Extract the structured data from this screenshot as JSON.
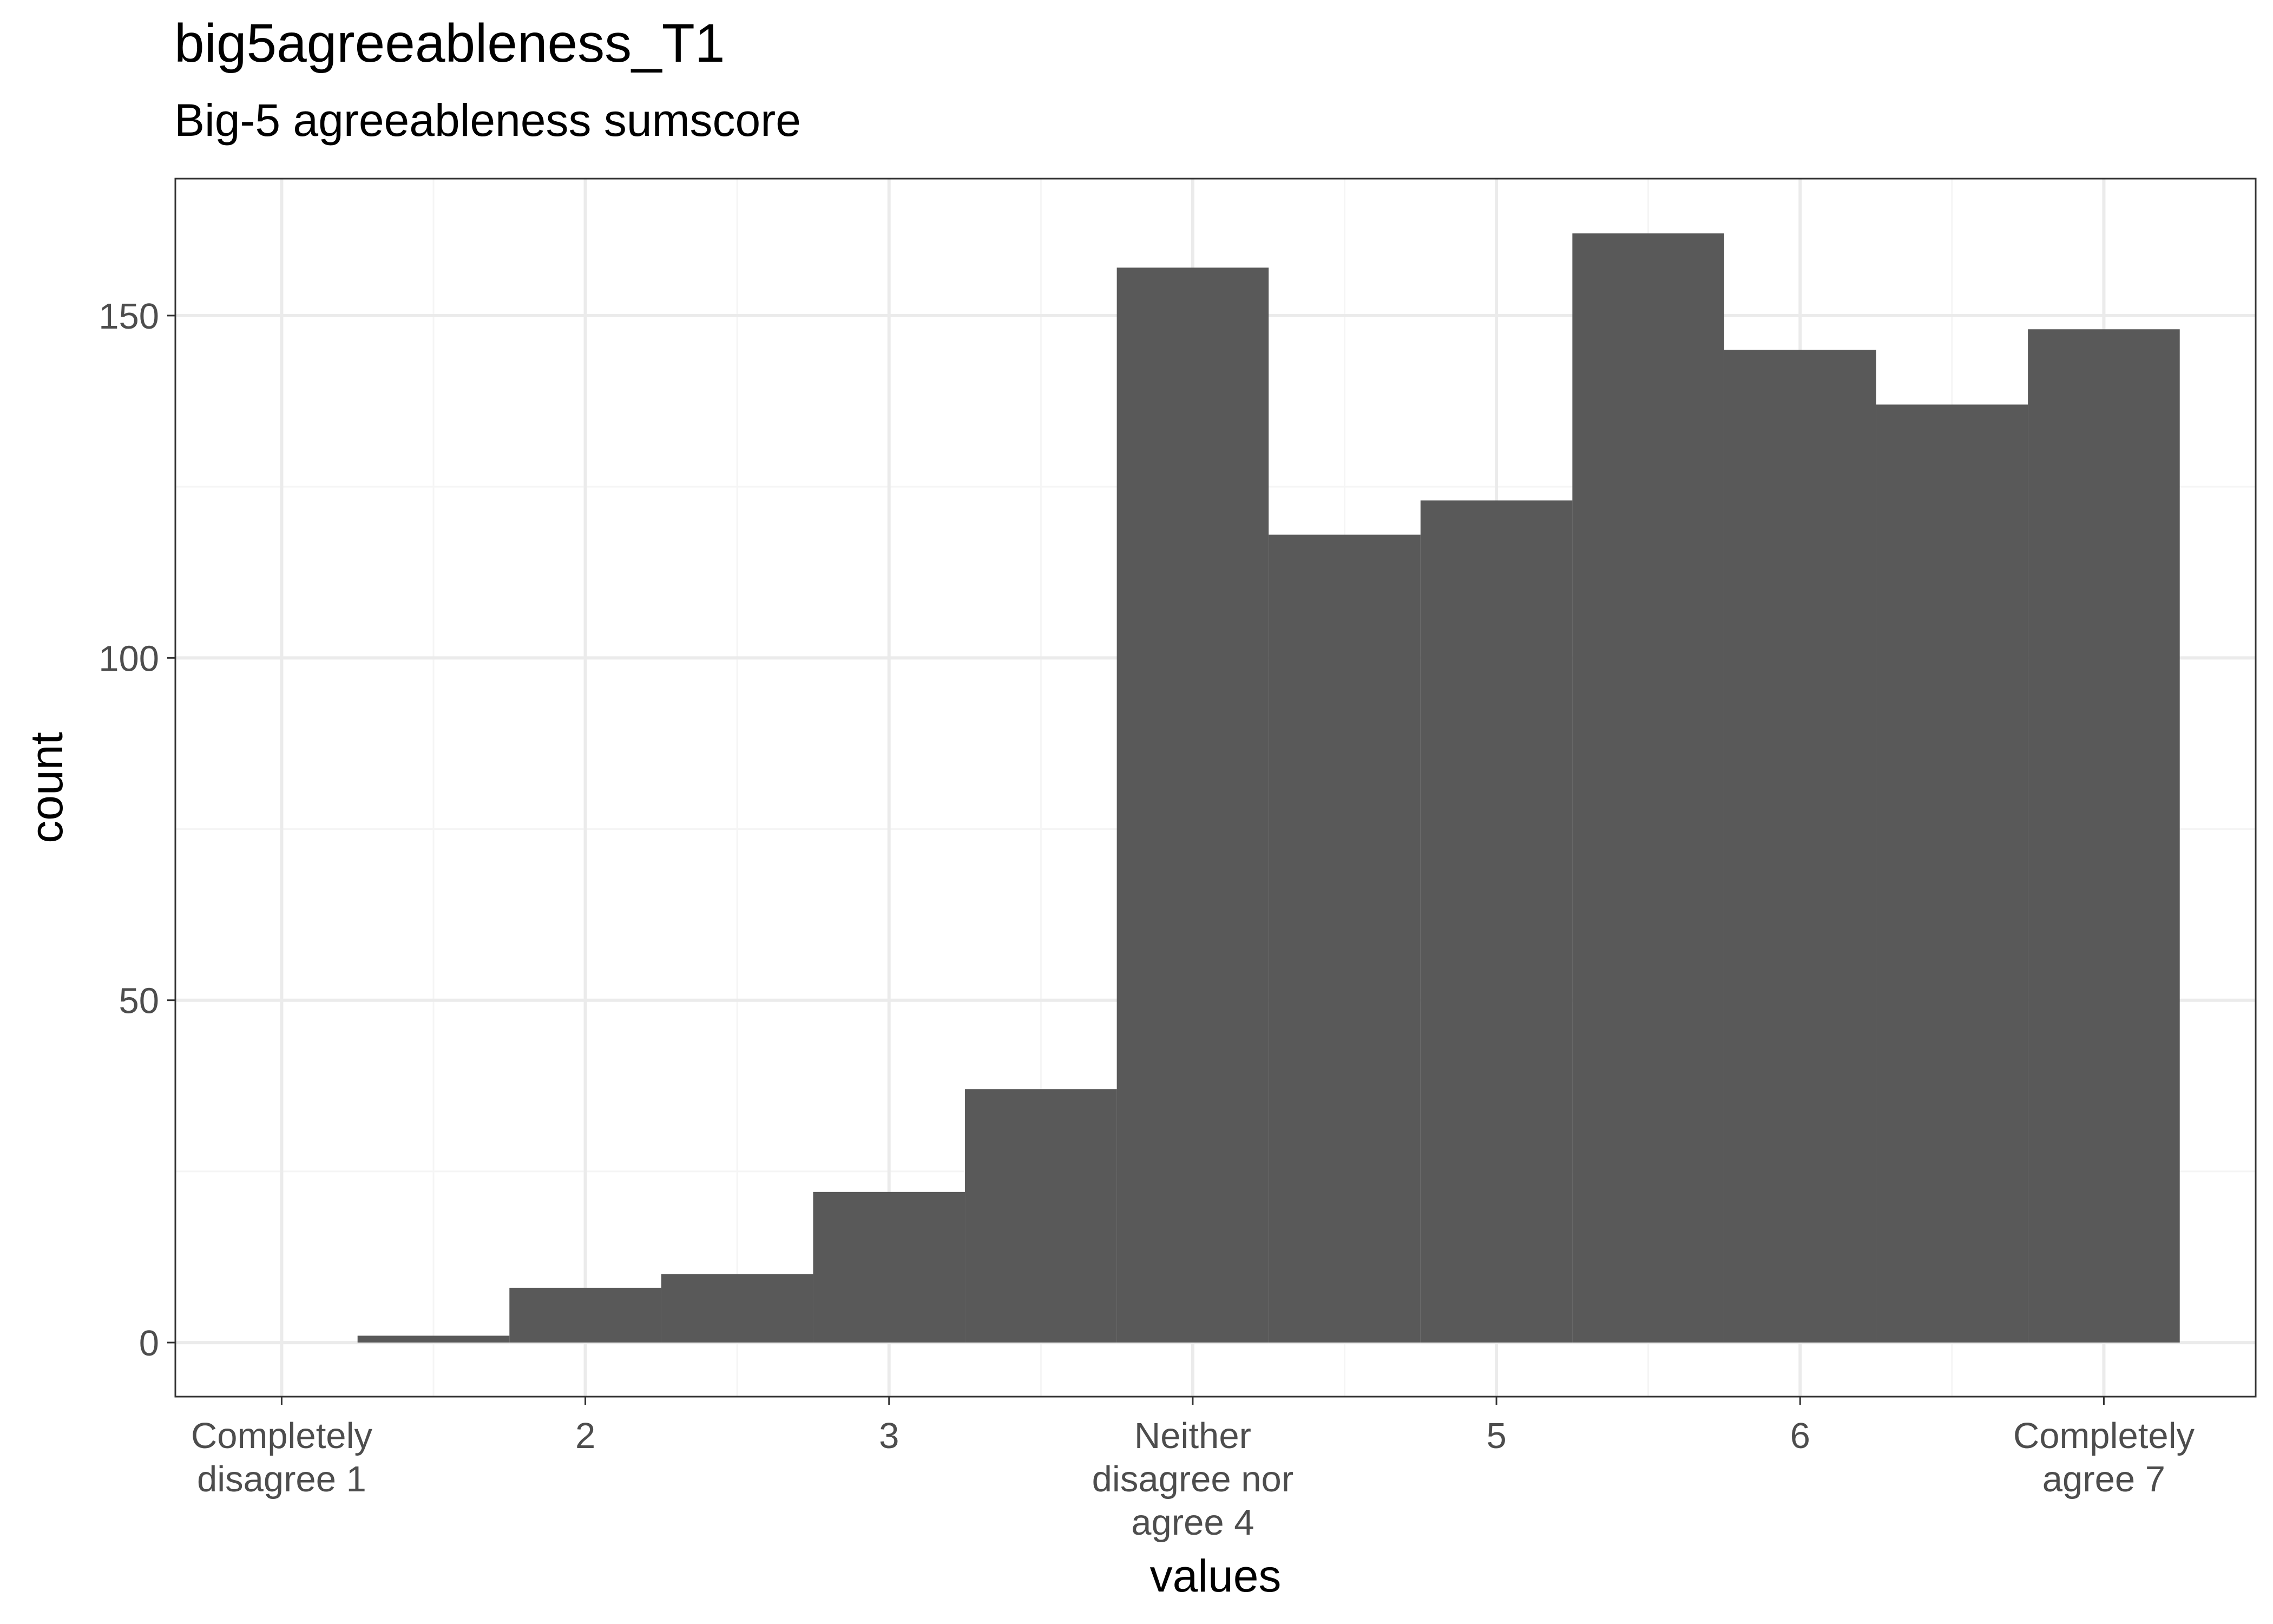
{
  "chart_data": {
    "type": "histogram",
    "title": "big5agreeableness_T1",
    "subtitle": "Big-5 agreeableness sumscore",
    "xlabel": "values",
    "ylabel": "count",
    "xlim": [
      0.65,
      7.5
    ],
    "ylim": [
      -7.9,
      170
    ],
    "bin_width": 0.5,
    "bins": [
      {
        "x0": 1.25,
        "x1": 1.75,
        "count": 1
      },
      {
        "x0": 1.75,
        "x1": 2.25,
        "count": 8
      },
      {
        "x0": 2.25,
        "x1": 2.75,
        "count": 10
      },
      {
        "x0": 2.75,
        "x1": 3.25,
        "count": 22
      },
      {
        "x0": 3.25,
        "x1": 3.75,
        "count": 37
      },
      {
        "x0": 3.75,
        "x1": 4.25,
        "count": 157
      },
      {
        "x0": 4.25,
        "x1": 4.75,
        "count": 118
      },
      {
        "x0": 4.75,
        "x1": 5.25,
        "count": 123
      },
      {
        "x0": 5.25,
        "x1": 5.75,
        "count": 162
      },
      {
        "x0": 5.75,
        "x1": 6.25,
        "count": 145
      },
      {
        "x0": 6.25,
        "x1": 6.75,
        "count": 137
      },
      {
        "x0": 6.75,
        "x1": 7.25,
        "count": 148
      }
    ],
    "x_ticks": [
      {
        "value": 1,
        "lines": [
          "Completely",
          "disagree 1"
        ]
      },
      {
        "value": 2,
        "lines": [
          "2"
        ]
      },
      {
        "value": 3,
        "lines": [
          "3"
        ]
      },
      {
        "value": 4,
        "lines": [
          "Neither",
          "disagree nor",
          "agree 4"
        ]
      },
      {
        "value": 5,
        "lines": [
          "5"
        ]
      },
      {
        "value": 6,
        "lines": [
          "6"
        ]
      },
      {
        "value": 7,
        "lines": [
          "Completely",
          "agree 7"
        ]
      }
    ],
    "y_ticks": [
      0,
      50,
      100,
      150
    ],
    "grid": true,
    "colors": {
      "bar": "#595959",
      "grid_major": "#ebebeb",
      "grid_minor": "#f5f5f5",
      "panel_border": "#333333",
      "tick_text": "#4d4d4d"
    }
  }
}
